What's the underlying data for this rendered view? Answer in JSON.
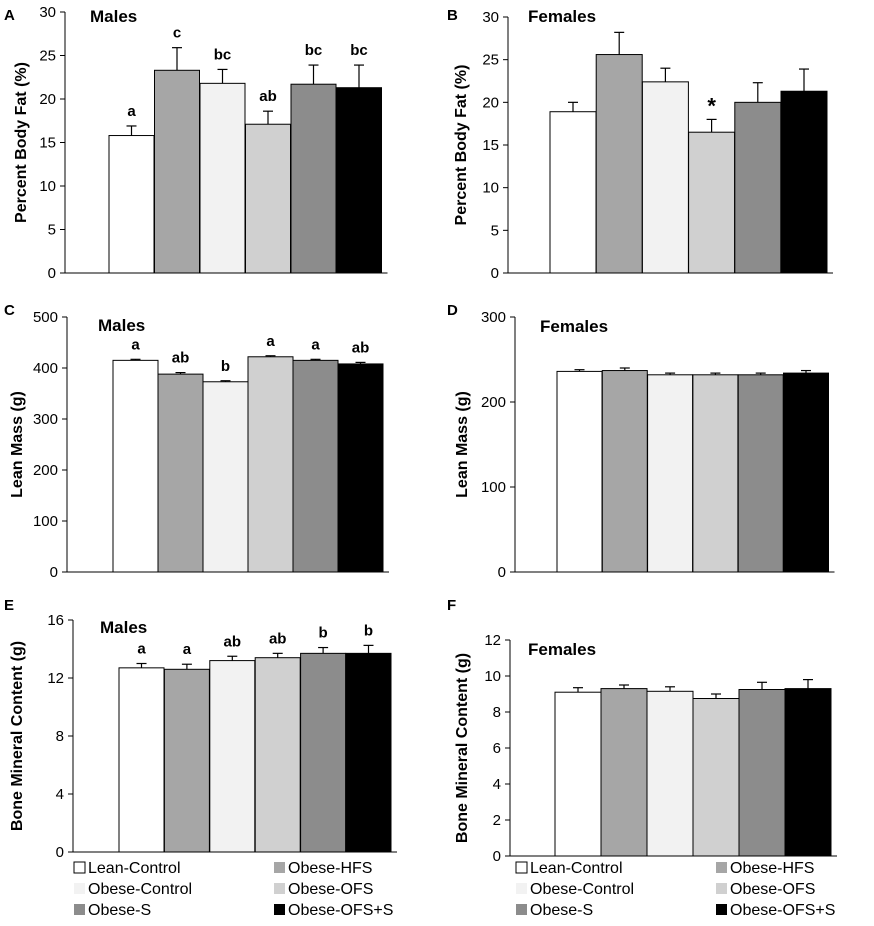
{
  "legend": [
    {
      "label": "Lean-Control",
      "color": "#ffffff"
    },
    {
      "label": "Obese-HFS",
      "color": "#a6a6a6"
    },
    {
      "label": "Obese-Control",
      "color": "#f2f2f2"
    },
    {
      "label": "Obese-OFS",
      "color": "#d0d0d0"
    },
    {
      "label": "Obese-S",
      "color": "#8c8c8c"
    },
    {
      "label": "Obese-OFS+S",
      "color": "#000000"
    }
  ],
  "chart_data": [
    {
      "type": "bar",
      "panel": "A",
      "title": "Males",
      "ylabel": "Percent Body Fat (%)",
      "ylim": [
        0,
        30
      ],
      "yticks": [
        0,
        5,
        10,
        15,
        20,
        25,
        30
      ],
      "categories": [
        "Lean-Control",
        "Obese-HFS",
        "Obese-Control",
        "Obese-OFS",
        "Obese-S",
        "Obese-OFS+S"
      ],
      "values": [
        15.8,
        23.3,
        21.8,
        17.1,
        21.7,
        21.3
      ],
      "errors": [
        1.1,
        2.6,
        1.6,
        1.5,
        2.2,
        2.6
      ],
      "labels": [
        "a",
        "c",
        "bc",
        "ab",
        "bc",
        "bc"
      ]
    },
    {
      "type": "bar",
      "panel": "B",
      "title": "Females",
      "ylabel": "Percent Body Fat (%)",
      "ylim": [
        0,
        30
      ],
      "yticks": [
        0,
        5,
        10,
        15,
        20,
        25,
        30
      ],
      "categories": [
        "Lean-Control",
        "Obese-HFS",
        "Obese-Control",
        "Obese-OFS",
        "Obese-S",
        "Obese-OFS+S"
      ],
      "values": [
        18.9,
        25.6,
        22.4,
        16.5,
        20.0,
        21.3
      ],
      "errors": [
        1.1,
        2.6,
        1.6,
        1.5,
        2.3,
        2.6
      ],
      "labels": [
        "",
        "",
        "",
        "*",
        "",
        ""
      ]
    },
    {
      "type": "bar",
      "panel": "C",
      "title": "Males",
      "ylabel": "Lean Mass (g)",
      "ylim": [
        0,
        500
      ],
      "yticks": [
        0,
        100,
        200,
        300,
        400,
        500
      ],
      "categories": [
        "Lean-Control",
        "Obese-HFS",
        "Obese-Control",
        "Obese-OFS",
        "Obese-S",
        "Obese-OFS+S"
      ],
      "values": [
        415,
        388,
        373,
        422,
        415,
        408
      ],
      "errors": [
        2,
        3,
        2,
        2,
        2,
        3
      ],
      "labels": [
        "a",
        "ab",
        "b",
        "a",
        "a",
        "ab"
      ]
    },
    {
      "type": "bar",
      "panel": "D",
      "title": "Females",
      "ylabel": "Lean Mass (g)",
      "ylim": [
        0,
        300
      ],
      "yticks": [
        0,
        100,
        200,
        300
      ],
      "categories": [
        "Lean-Control",
        "Obese-HFS",
        "Obese-Control",
        "Obese-OFS",
        "Obese-S",
        "Obese-OFS+S"
      ],
      "values": [
        236,
        237,
        232,
        232,
        232,
        234
      ],
      "errors": [
        2,
        3,
        2,
        2,
        2,
        3
      ],
      "labels": [
        "",
        "",
        "",
        "",
        "",
        ""
      ]
    },
    {
      "type": "bar",
      "panel": "E",
      "title": "Males",
      "ylabel": "Bone Mineral Content (g)",
      "ylim": [
        0,
        16
      ],
      "yticks": [
        0,
        4,
        8,
        12,
        16
      ],
      "categories": [
        "Lean-Control",
        "Obese-HFS",
        "Obese-Control",
        "Obese-OFS",
        "Obese-S",
        "Obese-OFS+S"
      ],
      "values": [
        12.7,
        12.6,
        13.2,
        13.4,
        13.7,
        13.7
      ],
      "errors": [
        0.3,
        0.35,
        0.3,
        0.3,
        0.4,
        0.55
      ],
      "labels": [
        "a",
        "a",
        "ab",
        "ab",
        "b",
        "b"
      ]
    },
    {
      "type": "bar",
      "panel": "F",
      "title": "Females",
      "ylabel": "Bone Mineral Content (g)",
      "ylim": [
        0,
        12
      ],
      "yticks": [
        0,
        2,
        4,
        6,
        8,
        10,
        12
      ],
      "categories": [
        "Lean-Control",
        "Obese-HFS",
        "Obese-Control",
        "Obese-OFS",
        "Obese-S",
        "Obese-OFS+S"
      ],
      "values": [
        9.1,
        9.3,
        9.15,
        8.75,
        9.25,
        9.3
      ],
      "errors": [
        0.25,
        0.2,
        0.25,
        0.25,
        0.4,
        0.5
      ],
      "labels": [
        "",
        "",
        "",
        "",
        "",
        ""
      ]
    }
  ]
}
